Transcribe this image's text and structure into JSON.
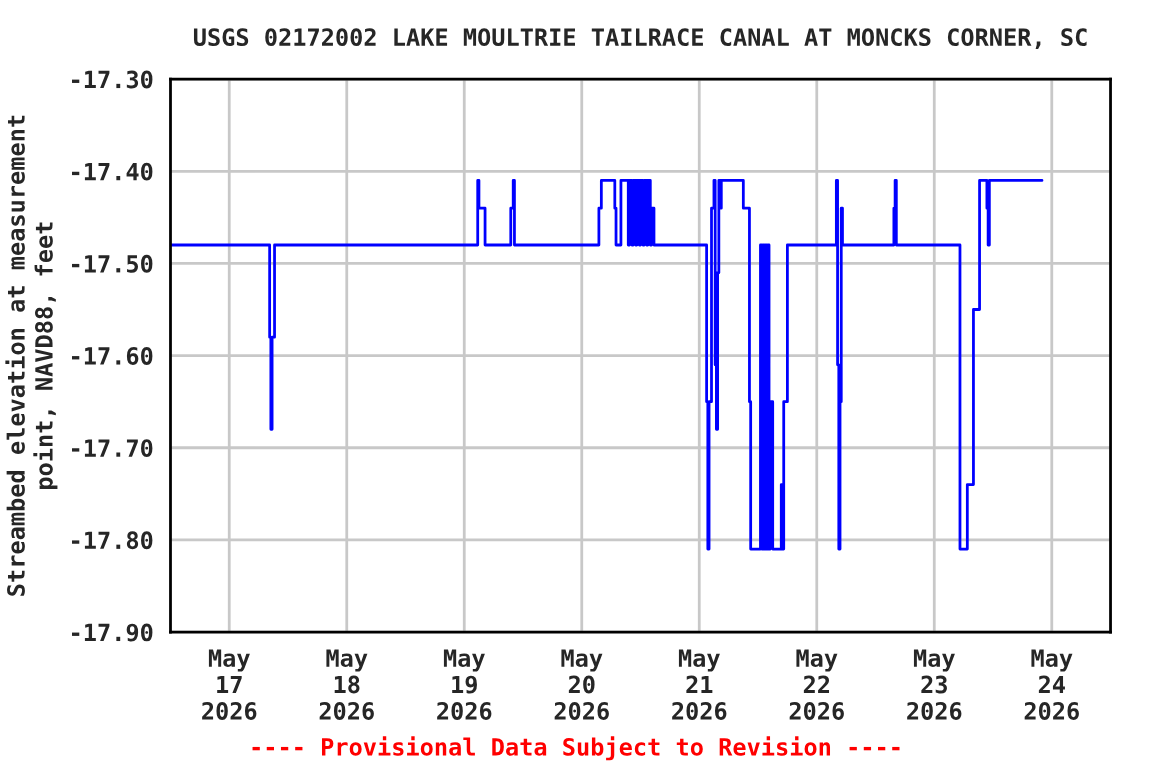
{
  "chart_data": {
    "type": "step",
    "title": "USGS 02172002 LAKE MOULTRIE TAILRACE CANAL AT MONCKS CORNER, SC",
    "ylabel": "Streambed elevation at measurement\npoint, NAVD88, feet",
    "annotations": [
      "---- Provisional Data Subject to Revision ----"
    ],
    "xlim": [
      "2026-05-16T12:00",
      "2026-05-24T12:00"
    ],
    "xticks": [
      {
        "value": "2026-05-17",
        "label": "May\n17\n2026"
      },
      {
        "value": "2026-05-18",
        "label": "May\n18\n2026"
      },
      {
        "value": "2026-05-19",
        "label": "May\n19\n2026"
      },
      {
        "value": "2026-05-20",
        "label": "May\n20\n2026"
      },
      {
        "value": "2026-05-21",
        "label": "May\n21\n2026"
      },
      {
        "value": "2026-05-22",
        "label": "May\n22\n2026"
      },
      {
        "value": "2026-05-23",
        "label": "May\n23\n2026"
      },
      {
        "value": "2026-05-24",
        "label": "May\n24\n2026"
      }
    ],
    "ylim": [
      -17.9,
      -17.3
    ],
    "yticks": [
      {
        "value": -17.9,
        "label": "-17.90"
      },
      {
        "value": -17.8,
        "label": "-17.80"
      },
      {
        "value": -17.7,
        "label": "-17.70"
      },
      {
        "value": -17.6,
        "label": "-17.60"
      },
      {
        "value": -17.5,
        "label": "-17.50"
      },
      {
        "value": -17.4,
        "label": "-17.40"
      },
      {
        "value": -17.3,
        "label": "-17.30"
      }
    ],
    "grid": true,
    "line_style": "solid",
    "marker": "none",
    "series": [
      {
        "color": "#0000ff",
        "x": [
          "2026-05-16T12:00",
          "2026-05-17T08:15",
          "2026-05-17T08:30",
          "2026-05-17T08:45",
          "2026-05-17T09:15",
          "2026-05-19T02:45",
          "2026-05-19T03:00",
          "2026-05-19T04:15",
          "2026-05-19T09:30",
          "2026-05-19T10:00",
          "2026-05-19T10:15",
          "2026-05-20T03:30",
          "2026-05-20T04:00",
          "2026-05-20T06:45",
          "2026-05-20T07:00",
          "2026-05-20T08:00",
          "2026-05-20T09:30",
          "2026-05-20T09:45",
          "2026-05-20T10:15",
          "2026-05-20T10:30",
          "2026-05-20T11:00",
          "2026-05-20T11:15",
          "2026-05-20T11:45",
          "2026-05-20T12:00",
          "2026-05-20T12:30",
          "2026-05-20T12:45",
          "2026-05-20T13:15",
          "2026-05-20T13:30",
          "2026-05-20T14:00",
          "2026-05-20T14:15",
          "2026-05-20T14:45",
          "2026-05-21T01:30",
          "2026-05-21T01:45",
          "2026-05-21T02:00",
          "2026-05-21T02:30",
          "2026-05-21T03:00",
          "2026-05-21T03:15",
          "2026-05-21T03:30",
          "2026-05-21T03:45",
          "2026-05-21T04:00",
          "2026-05-21T04:15",
          "2026-05-21T04:30",
          "2026-05-21T09:00",
          "2026-05-21T10:15",
          "2026-05-21T10:30",
          "2026-05-21T10:45",
          "2026-05-21T12:30",
          "2026-05-21T12:45",
          "2026-05-21T13:00",
          "2026-05-21T13:15",
          "2026-05-21T13:30",
          "2026-05-21T13:45",
          "2026-05-21T14:00",
          "2026-05-21T14:15",
          "2026-05-21T14:30",
          "2026-05-21T15:00",
          "2026-05-21T15:15",
          "2026-05-21T16:45",
          "2026-05-21T17:00",
          "2026-05-21T17:15",
          "2026-05-21T18:00",
          "2026-05-22T04:00",
          "2026-05-22T04:15",
          "2026-05-22T04:30",
          "2026-05-22T04:45",
          "2026-05-22T05:00",
          "2026-05-22T05:15",
          "2026-05-22T15:45",
          "2026-05-22T16:00",
          "2026-05-22T16:15",
          "2026-05-23T05:15",
          "2026-05-23T06:45",
          "2026-05-23T08:00",
          "2026-05-23T09:15",
          "2026-05-23T10:45",
          "2026-05-23T11:00",
          "2026-05-23T11:15",
          "2026-05-23T22:00"
        ],
        "values": [
          -17.48,
          -17.58,
          -17.68,
          -17.58,
          -17.48,
          -17.41,
          -17.44,
          -17.48,
          -17.44,
          -17.41,
          -17.48,
          -17.44,
          -17.41,
          -17.44,
          -17.48,
          -17.41,
          -17.48,
          -17.41,
          -17.48,
          -17.41,
          -17.48,
          -17.41,
          -17.48,
          -17.41,
          -17.48,
          -17.41,
          -17.48,
          -17.41,
          -17.48,
          -17.44,
          -17.48,
          -17.65,
          -17.81,
          -17.65,
          -17.44,
          -17.41,
          -17.61,
          -17.68,
          -17.51,
          -17.41,
          -17.44,
          -17.41,
          -17.44,
          -17.65,
          -17.81,
          -17.81,
          -17.48,
          -17.81,
          -17.48,
          -17.81,
          -17.48,
          -17.81,
          -17.48,
          -17.81,
          -17.65,
          -17.81,
          -17.81,
          -17.74,
          -17.81,
          -17.65,
          -17.48,
          -17.41,
          -17.61,
          -17.81,
          -17.65,
          -17.44,
          -17.48,
          -17.44,
          -17.41,
          -17.48,
          -17.81,
          -17.74,
          -17.55,
          -17.41,
          -17.44,
          -17.48,
          -17.41,
          -17.41
        ]
      }
    ]
  }
}
